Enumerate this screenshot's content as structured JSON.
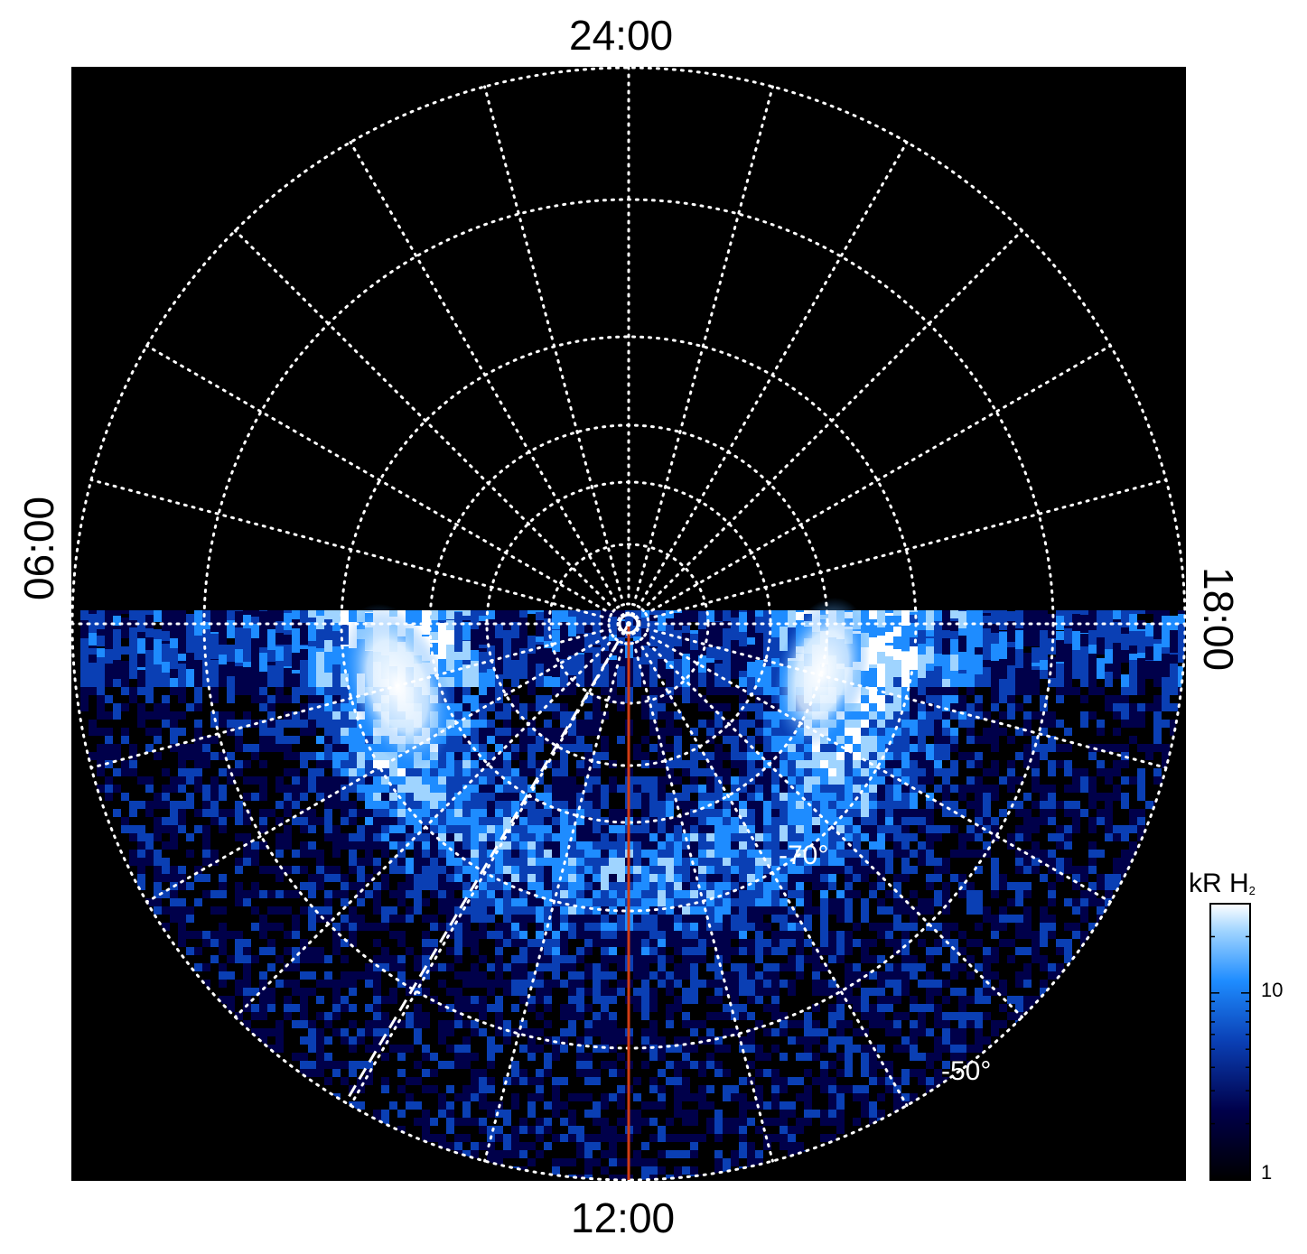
{
  "title": "",
  "local_time_labels": {
    "top": "24:00",
    "bottom": "12:00",
    "left": "06:00",
    "right": "18:00"
  },
  "latitude_labels": [
    "-70°",
    "-50°"
  ],
  "colorbar": {
    "unit_prefix": "kR H",
    "unit_subscript": "2",
    "scale": "log",
    "range": [
      1,
      30
    ],
    "tick_labels": [
      "10",
      "1"
    ],
    "colors": [
      "#000000",
      "#00004a",
      "#0a3fb4",
      "#1e8cff",
      "#9fd4ff",
      "#ffffff"
    ]
  },
  "colors": {
    "background": "#000000",
    "grid": "#ffffff",
    "meridian_line": "#d23c14",
    "dashed_line": "#ffffff"
  },
  "chart_data": {
    "type": "heatmap",
    "projection": "polar",
    "grid": true,
    "meridians_count": 24,
    "latitude_circles_count": 7,
    "observed_sector": "dayside half (06:00–12:00–18:00)",
    "bright_regions": [
      "dawn-side arc near 08:00–09:00",
      "dusk-side arc near 15:00–16:00"
    ],
    "value_range_kR": [
      1,
      30
    ]
  }
}
